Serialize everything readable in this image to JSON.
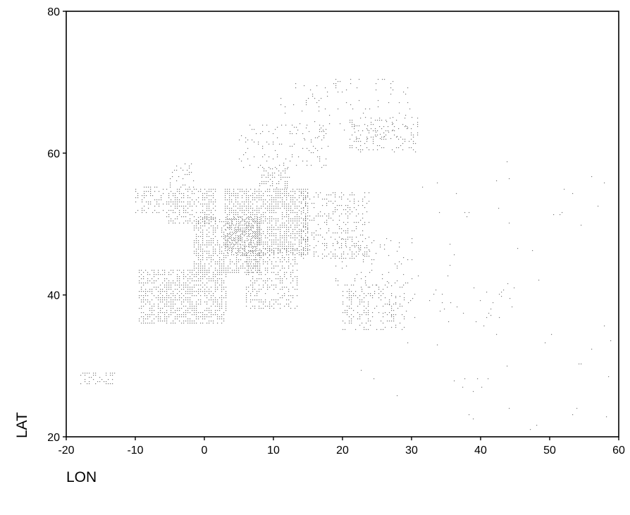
{
  "chart_data": {
    "type": "scatter",
    "title": "",
    "xlabel": "LON",
    "ylabel": "LAT",
    "xlim": [
      -20,
      60
    ],
    "ylim": [
      20,
      80
    ],
    "x_ticks": [
      -20,
      -10,
      0,
      10,
      20,
      30,
      40,
      50,
      60
    ],
    "y_ticks": [
      20,
      40,
      60,
      80
    ],
    "grid": false,
    "legend": "none",
    "marker_color": "#7a7a7a",
    "series": [
      {
        "regions": [
          {
            "lon": [
              -9.5,
              3.3
            ],
            "lat": [
              36.0,
              43.5
            ],
            "density": 0.55
          },
          {
            "lon": [
              -1.5,
              8.0
            ],
            "lat": [
              43.0,
              51.0
            ],
            "density": 0.6
          },
          {
            "lon": [
              3.0,
              15.0
            ],
            "lat": [
              45.5,
              55.0
            ],
            "density": 0.65
          },
          {
            "lon": [
              6.0,
              13.5
            ],
            "lat": [
              38.0,
              46.5
            ],
            "density": 0.35
          },
          {
            "lon": [
              14.0,
              24.0
            ],
            "lat": [
              45.0,
              54.5
            ],
            "density": 0.3
          },
          {
            "lon": [
              -5.5,
              1.8
            ],
            "lat": [
              50.0,
              55.0
            ],
            "density": 0.45
          },
          {
            "lon": [
              -5.0,
              -1.5
            ],
            "lat": [
              55.0,
              58.5
            ],
            "density": 0.3
          },
          {
            "lon": [
              -10.0,
              -6.0
            ],
            "lat": [
              51.5,
              55.3
            ],
            "density": 0.35
          },
          {
            "lon": [
              8.0,
              12.5
            ],
            "lat": [
              55.0,
              57.8
            ],
            "density": 0.4
          },
          {
            "lon": [
              5.0,
              18.0
            ],
            "lat": [
              58.0,
              64.0
            ],
            "density": 0.13
          },
          {
            "lon": [
              11.0,
              30.0
            ],
            "lat": [
              62.0,
              70.5
            ],
            "density": 0.06
          },
          {
            "lon": [
              21.0,
              31.0
            ],
            "lat": [
              60.0,
              65.0
            ],
            "density": 0.22
          },
          {
            "lon": [
              20.0,
              29.0
            ],
            "lat": [
              35.0,
              41.5
            ],
            "density": 0.25
          },
          {
            "lon": [
              19.0,
              30.0
            ],
            "lat": [
              41.0,
              48.0
            ],
            "density": 0.08
          },
          {
            "lon": [
              24.0,
              45.0
            ],
            "lat": [
              36.0,
              42.0
            ],
            "density": 0.03
          },
          {
            "lon": [
              22.0,
              60.0
            ],
            "lat": [
              20.0,
              36.0
            ],
            "density": 0.004
          },
          {
            "lon": [
              -18.0,
              -13.0
            ],
            "lat": [
              27.5,
              29.0
            ],
            "density": 0.35
          },
          {
            "lon": [
              30.0,
              60.0
            ],
            "lat": [
              42.0,
              60.0
            ],
            "density": 0.004
          }
        ]
      }
    ]
  }
}
